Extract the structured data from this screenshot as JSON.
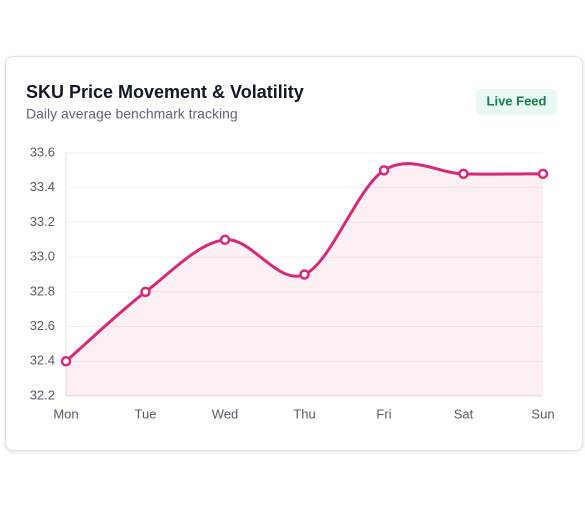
{
  "badge": "Live Feed",
  "chart_data": {
    "type": "line",
    "title": "SKU Price Movement & Volatility",
    "subtitle": "Daily average benchmark tracking",
    "categories": [
      "Mon",
      "Tue",
      "Wed",
      "Thu",
      "Fri",
      "Sat",
      "Sun"
    ],
    "series": [
      {
        "color": "#d42a78",
        "values": [
          32.4,
          32.8,
          33.1,
          32.9,
          33.5,
          33.48,
          33.48
        ]
      }
    ],
    "ylim": [
      32.2,
      33.6
    ],
    "yticks": [
      32.2,
      32.4,
      32.6,
      32.8,
      {
        "value": 33,
        "label": "33.0"
      },
      33.2,
      33.4,
      33.6
    ],
    "grid": true,
    "area": true,
    "smooth": true
  }
}
